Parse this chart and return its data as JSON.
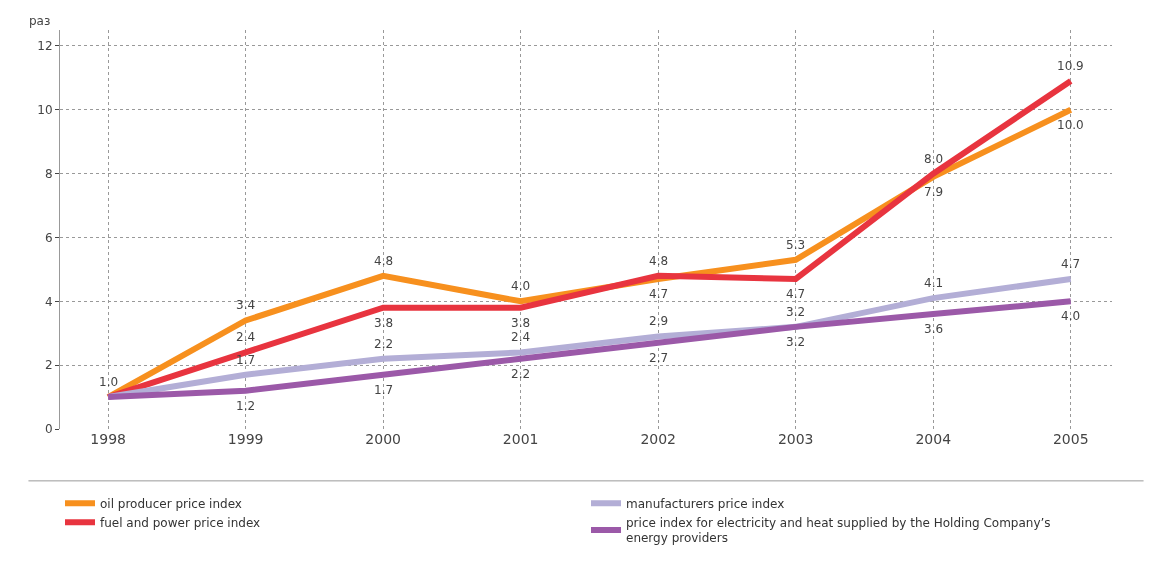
{
  "chart_data": {
    "type": "line",
    "ylabel": "раз",
    "categories": [
      "1998",
      "1999",
      "2000",
      "2001",
      "2002",
      "2003",
      "2004",
      "2005"
    ],
    "series": [
      {
        "name": "oil producer price index",
        "color": "#f7901e",
        "values": [
          1.0,
          3.4,
          4.8,
          4.0,
          4.7,
          5.3,
          7.9,
          10.0
        ],
        "value_labels": [
          "1.0",
          "3.4",
          "4.8",
          "4.0",
          "4.7",
          "5.3",
          "7.9",
          "10.0"
        ]
      },
      {
        "name": "fuel and power price index",
        "color": "#e8343f",
        "values": [
          1.0,
          2.4,
          3.8,
          3.8,
          4.8,
          4.7,
          8.0,
          10.9
        ],
        "value_labels": [
          null,
          "2.4",
          "3.8",
          "3.8",
          "4.8",
          "4.7",
          "8.0",
          "10.9"
        ]
      },
      {
        "name": "manufacturers price index",
        "color": "#b3aed6",
        "values": [
          1.0,
          1.7,
          2.2,
          2.4,
          2.9,
          3.2,
          4.1,
          4.7
        ],
        "value_labels": [
          null,
          "1.7",
          "2.2",
          "2.4",
          "2.9",
          "3.2",
          "4.1",
          "4.7"
        ]
      },
      {
        "name": "price index for electricity and heat supplied by the Holding Company’s energy providers",
        "color": "#9b59a8",
        "values": [
          1.0,
          1.2,
          1.7,
          2.2,
          2.7,
          3.2,
          3.6,
          4.0
        ],
        "value_labels": [
          null,
          "1.2",
          "1.7",
          "2.2",
          "2.7",
          "3.2",
          "3.6",
          "4.0"
        ]
      }
    ],
    "ylim": [
      0,
      12.5
    ],
    "yticks": [
      0,
      2,
      4,
      6,
      8,
      10,
      12
    ],
    "grid": true,
    "legend": "bottom",
    "marker": "none",
    "line_style": "solid"
  }
}
